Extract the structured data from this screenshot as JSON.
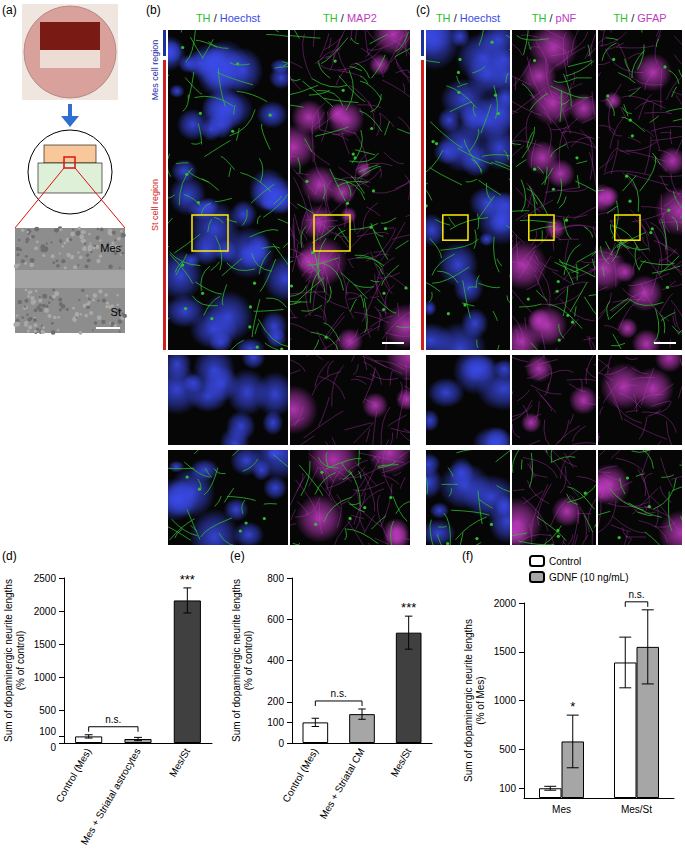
{
  "panels": {
    "a": {
      "label": "(a)",
      "micrograph_labels": [
        "Mes",
        "St"
      ]
    },
    "b": {
      "label": "(b)",
      "regions": [
        {
          "text": "Mes cell region",
          "color": "#1f2f9f"
        },
        {
          "text": "St cell region",
          "color": "#d01f1f"
        }
      ],
      "columns": [
        {
          "title": "TH / Hoechst",
          "title_colors": [
            "#2fbf2f",
            "#222222",
            "#3a4ae8"
          ]
        },
        {
          "title": "TH / MAP2",
          "title_colors": [
            "#2fbf2f",
            "#222222",
            "#c03ac0"
          ]
        }
      ]
    },
    "c": {
      "label": "(c)",
      "regions": [
        {
          "color": "#1f2f9f"
        },
        {
          "color": "#d01f1f"
        }
      ],
      "columns": [
        {
          "title": "TH / Hoechst",
          "title_colors": [
            "#2fbf2f",
            "#222222",
            "#3a4ae8"
          ]
        },
        {
          "title": "TH / pNF",
          "title_colors": [
            "#2fbf2f",
            "#222222",
            "#c03ac0"
          ]
        },
        {
          "title": "TH / GFAP",
          "title_colors": [
            "#2fbf2f",
            "#222222",
            "#c03ac0"
          ]
        }
      ]
    }
  },
  "chart_data": [
    {
      "type": "bar",
      "panel": "(d)",
      "ylabel": "Sum of dopaminergic neurite lengths\n(% of control)",
      "categories": [
        "Control (Mes)",
        "Mes + Striatal astrocytes",
        "Mes/St"
      ],
      "values": [
        100,
        60,
        2160
      ],
      "errors": [
        25,
        25,
        190
      ],
      "colors": [
        "#ffffff",
        "#a6a6a6",
        "#404040"
      ],
      "ylim": [
        0,
        2500
      ],
      "yticks": [
        0,
        100,
        500,
        1000,
        1500,
        2000,
        2500
      ],
      "grid": false,
      "annotations": [
        {
          "text": "n.s.",
          "between": [
            "Control (Mes)",
            "Mes + Striatal astrocytes"
          ]
        },
        {
          "text": "***",
          "category": "Mes/St"
        }
      ]
    },
    {
      "type": "bar",
      "panel": "(e)",
      "ylabel": "Sum of dopaminergic neurite lengths\n(% of control)",
      "categories": [
        "Control (Mes)",
        "Mes + Striatal CM",
        "Mes/St"
      ],
      "values": [
        100,
        140,
        535
      ],
      "errors": [
        20,
        25,
        80
      ],
      "colors": [
        "#ffffff",
        "#a6a6a6",
        "#404040"
      ],
      "ylim": [
        0,
        800
      ],
      "yticks": [
        0,
        100,
        200,
        400,
        600,
        800
      ],
      "grid": false,
      "annotations": [
        {
          "text": "n.s.",
          "between": [
            "Control (Mes)",
            "Mes + Striatal CM"
          ]
        },
        {
          "text": "***",
          "category": "Mes/St"
        }
      ]
    },
    {
      "type": "bar",
      "panel": "(f)",
      "ylabel": "Sum of dopaminergic neurite lengths\n(% of Mes)",
      "categories": [
        "Mes",
        "Mes/St"
      ],
      "series": [
        {
          "name": "Control",
          "color": "#ffffff",
          "values": [
            100,
            1390
          ],
          "errors": [
            20,
            260
          ]
        },
        {
          "name": "GDNF (10 ng/mL)",
          "color": "#a6a6a6",
          "values": [
            580,
            1550
          ],
          "errors": [
            270,
            380
          ]
        }
      ],
      "ylim": [
        0,
        2000
      ],
      "yticks": [
        100,
        500,
        1000,
        1500,
        2000
      ],
      "grid": false,
      "legend": "upper left",
      "annotations": [
        {
          "text": "*",
          "category": "Mes",
          "series": "GDNF (10 ng/mL)"
        },
        {
          "text": "n.s.",
          "category": "Mes/St",
          "between": [
            "Control",
            "GDNF (10 ng/mL)"
          ]
        }
      ]
    }
  ]
}
